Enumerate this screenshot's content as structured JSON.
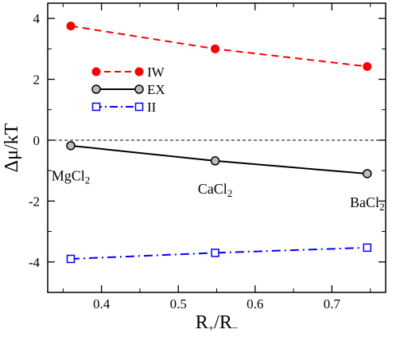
{
  "chart_data": {
    "type": "line",
    "xlabel": {
      "main": "R",
      "sub1": "+",
      "mid": "/R",
      "sub2": "−"
    },
    "ylabel": "Δμ/kT",
    "xlim": [
      0.33,
      0.77
    ],
    "ylim": [
      -5,
      4.5
    ],
    "xticks": [
      0.4,
      0.5,
      0.6,
      0.7
    ],
    "xtick_labels": [
      "0.4",
      "0.5",
      "0.6",
      "0.7"
    ],
    "yticks": [
      -4,
      -2,
      0,
      2,
      4
    ],
    "ytick_labels": [
      "-4",
      "-2",
      "0",
      "2",
      "4"
    ],
    "grid": false,
    "legend_position": "upper-left",
    "reference_line": {
      "y": 0,
      "style": "dashed"
    },
    "series": [
      {
        "name": "IW",
        "color": "#ff0000",
        "line_style": "dashed",
        "marker": "filled-circle",
        "x": [
          0.36,
          0.548,
          0.746
        ],
        "y": [
          3.75,
          3.0,
          2.42
        ]
      },
      {
        "name": "EX",
        "color": "#000000",
        "line_style": "solid",
        "marker": "gray-circle",
        "x": [
          0.36,
          0.548,
          0.746
        ],
        "y": [
          -0.18,
          -0.68,
          -1.1
        ]
      },
      {
        "name": "II",
        "color": "#0000ff",
        "line_style": "dash-dot",
        "marker": "open-square",
        "x": [
          0.36,
          0.548,
          0.746
        ],
        "y": [
          -3.9,
          -3.7,
          -3.53
        ]
      }
    ],
    "annotations": [
      {
        "base": "MgCl",
        "sub": "2",
        "x": 0.36,
        "y": -1.32
      },
      {
        "base": "CaCl",
        "sub": "2",
        "x": 0.548,
        "y": -1.75
      },
      {
        "base": "BaCl",
        "sub": "2",
        "x": 0.746,
        "y": -2.2
      }
    ]
  }
}
